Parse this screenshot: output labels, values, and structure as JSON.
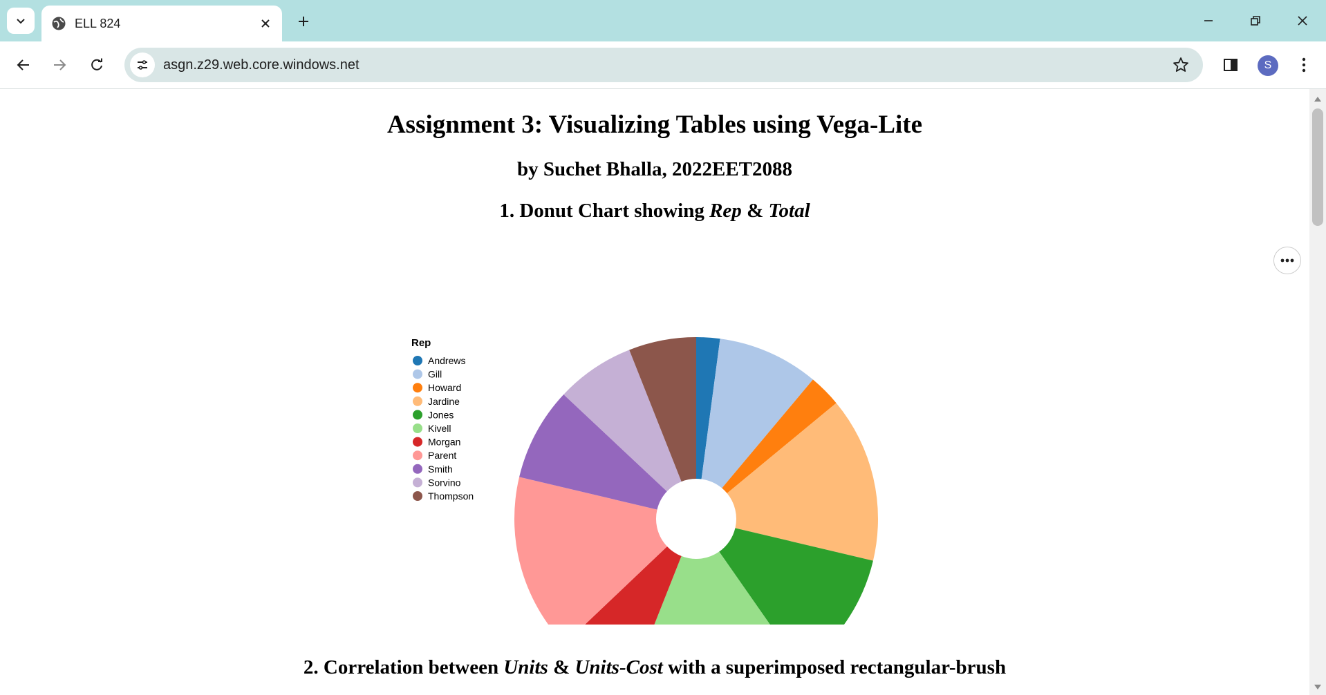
{
  "browser": {
    "tab_title": "ELL 824",
    "url": "asgn.z29.web.core.windows.net",
    "avatar_letter": "S",
    "accent": "#b3e0e1"
  },
  "page": {
    "title": "Assignment 3: Visualizing Tables using Vega-Lite",
    "byline": "by Suchet Bhalla, 2022EET2088",
    "section1": {
      "prefix": "1. Donut Chart showing ",
      "field_a": "Rep",
      "amp": " & ",
      "field_b": "Total"
    },
    "section2": {
      "prefix": "2. Correlation between ",
      "field_a": "Units",
      "amp": " & ",
      "field_b": "Units-Cost",
      "suffix": " with a superimposed rectangular-brush"
    }
  },
  "chart_data": {
    "type": "pie",
    "variant": "donut",
    "legend_title": "Rep",
    "legend_position": "left",
    "units": "share of Total (%)",
    "categories": [
      "Andrews",
      "Gill",
      "Howard",
      "Jardine",
      "Jones",
      "Kivell",
      "Morgan",
      "Parent",
      "Smith",
      "Sorvino",
      "Thompson"
    ],
    "values": [
      2.1,
      9.0,
      2.9,
      14.7,
      11.6,
      15.7,
      6.9,
      15.8,
      8.3,
      7.0,
      6.0
    ],
    "colors": [
      "#1f77b4",
      "#aec7e8",
      "#ff7f0e",
      "#ffbb78",
      "#2ca02c",
      "#98df8a",
      "#d62728",
      "#ff9896",
      "#9467bd",
      "#c5b0d5",
      "#8c564b"
    ]
  }
}
